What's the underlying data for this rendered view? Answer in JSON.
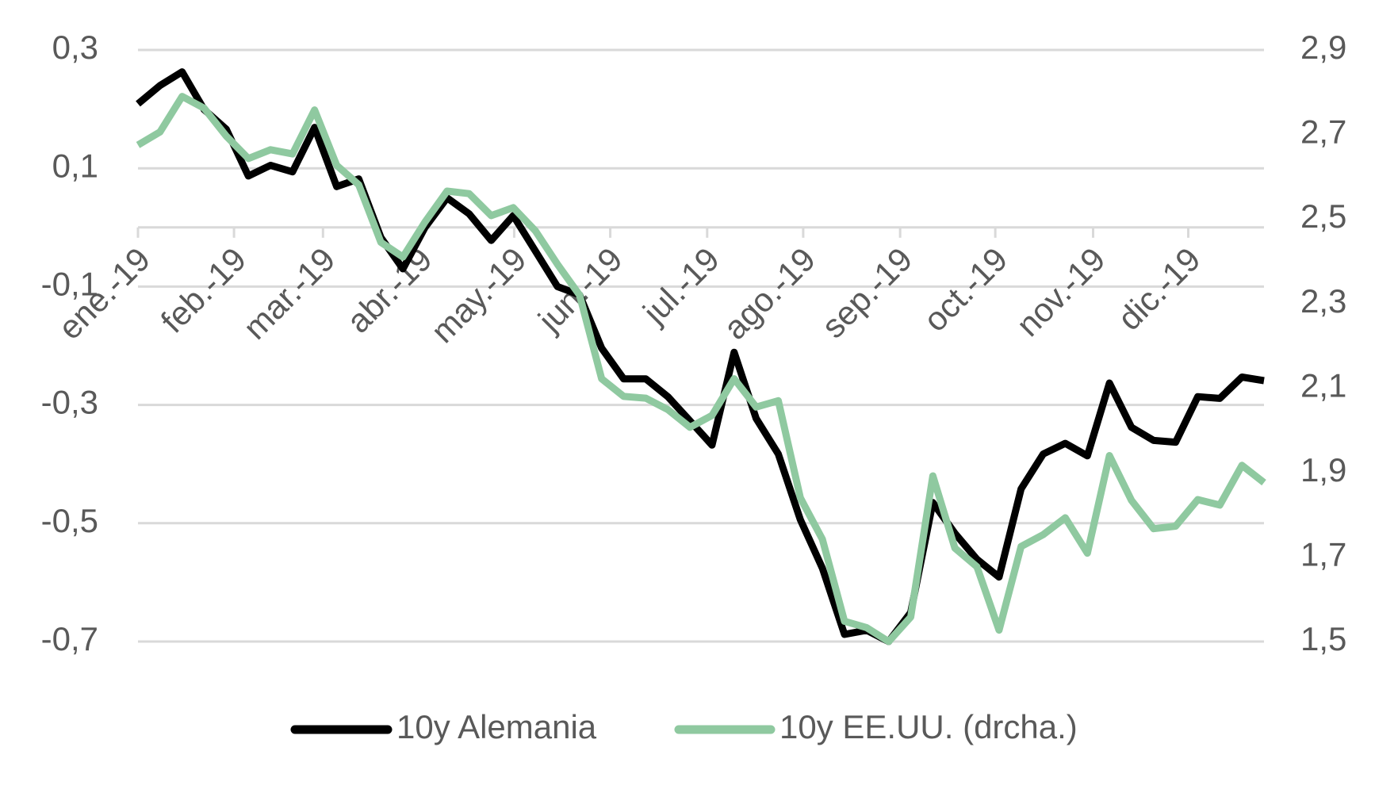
{
  "chart_data": {
    "type": "line",
    "xlim": [
      0,
      51
    ],
    "xticks": [
      {
        "value": 0,
        "label": "ene.-19"
      },
      {
        "value": 4.35,
        "label": "feb.-19"
      },
      {
        "value": 8.38,
        "label": "mar.-19"
      },
      {
        "value": 12.77,
        "label": "abr.-19"
      },
      {
        "value": 17.04,
        "label": "may.-19"
      },
      {
        "value": 21.39,
        "label": "jun.-19"
      },
      {
        "value": 25.78,
        "label": "jul.-19"
      },
      {
        "value": 30.13,
        "label": "ago.-19"
      },
      {
        "value": 34.52,
        "label": "sep.-19"
      },
      {
        "value": 38.83,
        "label": "oct.-19"
      },
      {
        "value": 43.26,
        "label": "nov.-19"
      },
      {
        "value": 47.57,
        "label": "dic.-19"
      }
    ],
    "ylim": [
      -0.7,
      0.3
    ],
    "yticks": [
      {
        "value": 0.3,
        "label": "0,3"
      },
      {
        "value": 0.1,
        "label": "0,1"
      },
      {
        "value": -0.1,
        "label": "-0,1"
      },
      {
        "value": -0.3,
        "label": "-0,3"
      },
      {
        "value": -0.5,
        "label": "-0,5"
      },
      {
        "value": -0.7,
        "label": "-0,7"
      }
    ],
    "y2lim": [
      1.5,
      2.9
    ],
    "y2ticks": [
      {
        "value": 2.9,
        "label": "2,9"
      },
      {
        "value": 2.7,
        "label": "2,7"
      },
      {
        "value": 2.5,
        "label": "2,5"
      },
      {
        "value": 2.3,
        "label": "2,3"
      },
      {
        "value": 2.1,
        "label": "2,1"
      },
      {
        "value": 1.9,
        "label": "1,9"
      },
      {
        "value": 1.7,
        "label": "1,7"
      },
      {
        "value": 1.5,
        "label": "1,5"
      }
    ],
    "grid": true,
    "legend": "bottom",
    "series": [
      {
        "name": "10y Alemania",
        "color": "#000000",
        "values": [
          0.209,
          0.24,
          0.263,
          0.199,
          0.166,
          0.087,
          0.105,
          0.094,
          0.169,
          0.069,
          0.082,
          -0.017,
          -0.07,
          0.0,
          0.05,
          0.023,
          -0.022,
          0.02,
          -0.04,
          -0.1,
          -0.114,
          -0.204,
          -0.256,
          -0.256,
          -0.286,
          -0.327,
          -0.368,
          -0.211,
          -0.323,
          -0.383,
          -0.494,
          -0.576,
          -0.688,
          -0.681,
          -0.7,
          -0.651,
          -0.465,
          -0.517,
          -0.561,
          -0.591,
          -0.442,
          -0.383,
          -0.365,
          -0.386,
          -0.263,
          -0.338,
          -0.36,
          -0.363,
          -0.286,
          -0.289,
          -0.253,
          -0.259
        ]
      },
      {
        "name": "10y EE.UU. (drcha.)",
        "color": "#8fc9a0",
        "axis": "y2",
        "values": [
          2.675,
          2.706,
          2.79,
          2.762,
          2.696,
          2.643,
          2.664,
          2.654,
          2.758,
          2.627,
          2.581,
          2.445,
          2.41,
          2.493,
          2.566,
          2.56,
          2.508,
          2.527,
          2.472,
          2.393,
          2.32,
          2.122,
          2.08,
          2.076,
          2.049,
          2.007,
          2.035,
          2.122,
          2.055,
          2.07,
          1.84,
          1.742,
          1.548,
          1.533,
          1.5,
          1.558,
          1.892,
          1.721,
          1.677,
          1.527,
          1.725,
          1.753,
          1.793,
          1.709,
          1.94,
          1.834,
          1.767,
          1.773,
          1.836,
          1.823,
          1.917,
          1.876
        ]
      }
    ]
  }
}
